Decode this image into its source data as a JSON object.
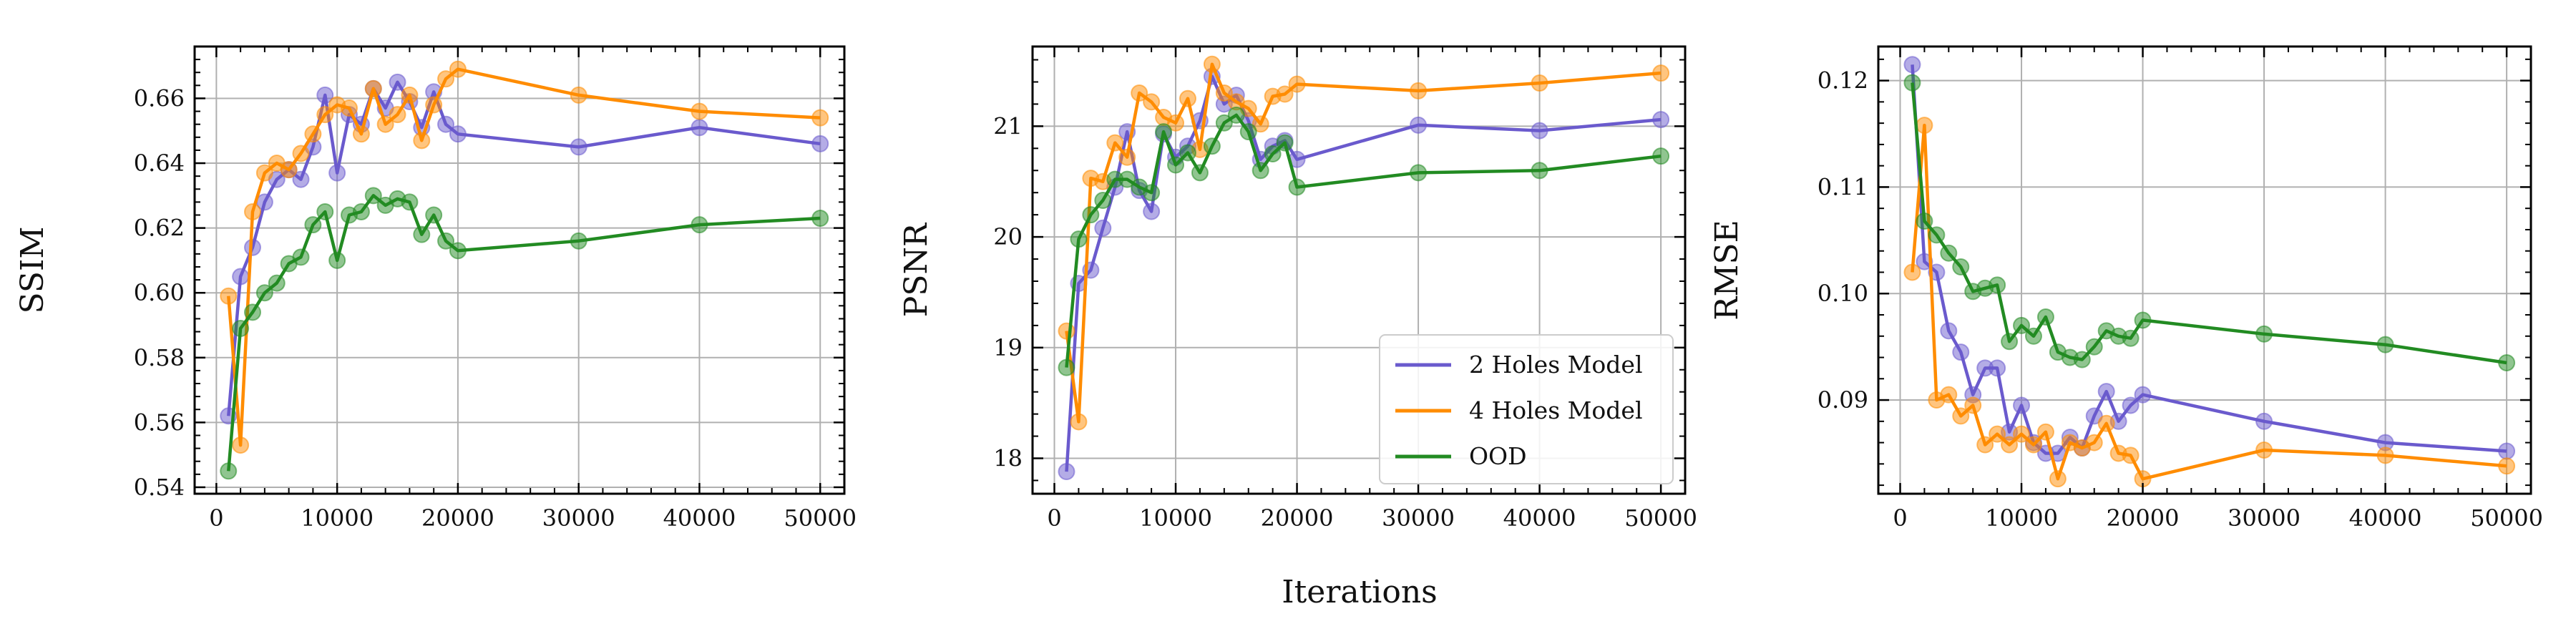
{
  "colors": {
    "two_holes": "#6a5acd",
    "four_holes": "#ff8c00",
    "ood": "#228b22",
    "grid": "#b0b0b0"
  },
  "figure": {
    "xlabel": "Iterations",
    "legend": {
      "placement": "lower-right of middle panel",
      "entries": [
        "2 Holes Model",
        "4 Holes Model",
        "OOD"
      ]
    }
  },
  "chart_data": [
    {
      "type": "line",
      "ylabel": "SSIM",
      "xlim": [
        -1800,
        52000
      ],
      "ylim": [
        0.538,
        0.676
      ],
      "xticks": [
        0,
        10000,
        20000,
        30000,
        40000,
        50000
      ],
      "xtick_labels": [
        "0",
        "10000",
        "20000",
        "30000",
        "40000",
        "50000"
      ],
      "yticks": [
        0.54,
        0.56,
        0.58,
        0.6,
        0.62,
        0.64,
        0.66
      ],
      "ytick_labels": [
        "0.54",
        "0.56",
        "0.58",
        "0.60",
        "0.62",
        "0.64",
        "0.66"
      ],
      "grid": true,
      "series": [
        {
          "name": "2 Holes Model",
          "x": [
            1000,
            2000,
            3000,
            4000,
            5000,
            6000,
            7000,
            8000,
            9000,
            10000,
            11000,
            12000,
            13000,
            14000,
            15000,
            16000,
            17000,
            18000,
            19000,
            20000,
            30000,
            40000,
            50000
          ],
          "y": [
            0.562,
            0.605,
            0.614,
            0.628,
            0.635,
            0.638,
            0.635,
            0.645,
            0.661,
            0.637,
            0.655,
            0.652,
            0.663,
            0.657,
            0.665,
            0.659,
            0.651,
            0.662,
            0.652,
            0.649,
            0.645,
            0.651,
            0.646
          ]
        },
        {
          "name": "4 Holes Model",
          "x": [
            1000,
            2000,
            3000,
            4000,
            5000,
            6000,
            7000,
            8000,
            9000,
            10000,
            11000,
            12000,
            13000,
            14000,
            15000,
            16000,
            17000,
            18000,
            19000,
            20000,
            30000,
            40000,
            50000
          ],
          "y": [
            0.599,
            0.553,
            0.625,
            0.637,
            0.64,
            0.638,
            0.643,
            0.649,
            0.655,
            0.658,
            0.657,
            0.649,
            0.663,
            0.652,
            0.655,
            0.661,
            0.647,
            0.658,
            0.666,
            0.669,
            0.661,
            0.656,
            0.654
          ]
        },
        {
          "name": "OOD",
          "x": [
            1000,
            2000,
            3000,
            4000,
            5000,
            6000,
            7000,
            8000,
            9000,
            10000,
            11000,
            12000,
            13000,
            14000,
            15000,
            16000,
            17000,
            18000,
            19000,
            20000,
            30000,
            40000,
            50000
          ],
          "y": [
            0.545,
            0.589,
            0.594,
            0.6,
            0.603,
            0.609,
            0.611,
            0.621,
            0.625,
            0.61,
            0.624,
            0.625,
            0.63,
            0.627,
            0.629,
            0.628,
            0.618,
            0.624,
            0.616,
            0.613,
            0.616,
            0.621,
            0.623
          ]
        }
      ]
    },
    {
      "type": "line",
      "ylabel": "PSNR",
      "xlim": [
        -1800,
        52000
      ],
      "ylim": [
        17.68,
        21.72
      ],
      "xticks": [
        0,
        10000,
        20000,
        30000,
        40000,
        50000
      ],
      "xtick_labels": [
        "0",
        "10000",
        "20000",
        "30000",
        "40000",
        "50000"
      ],
      "yticks": [
        18,
        19,
        20,
        21
      ],
      "ytick_labels": [
        "18",
        "19",
        "20",
        "21"
      ],
      "grid": true,
      "series": [
        {
          "name": "2 Holes Model",
          "x": [
            1000,
            2000,
            3000,
            4000,
            5000,
            6000,
            7000,
            8000,
            9000,
            10000,
            11000,
            12000,
            13000,
            14000,
            15000,
            16000,
            17000,
            18000,
            19000,
            20000,
            30000,
            40000,
            50000
          ],
          "y": [
            17.88,
            19.58,
            19.7,
            20.08,
            20.45,
            20.95,
            20.42,
            20.23,
            20.93,
            20.72,
            20.82,
            21.05,
            21.45,
            21.2,
            21.28,
            21.05,
            20.7,
            20.82,
            20.87,
            20.7,
            21.01,
            20.96,
            21.06
          ]
        },
        {
          "name": "4 Holes Model",
          "x": [
            1000,
            2000,
            3000,
            4000,
            5000,
            6000,
            7000,
            8000,
            9000,
            10000,
            11000,
            12000,
            13000,
            14000,
            15000,
            16000,
            17000,
            18000,
            19000,
            20000,
            30000,
            40000,
            50000
          ],
          "y": [
            19.15,
            18.33,
            20.53,
            20.5,
            20.85,
            20.72,
            21.3,
            21.22,
            21.08,
            21.03,
            21.25,
            20.79,
            21.56,
            21.3,
            21.22,
            21.16,
            21.02,
            21.27,
            21.29,
            21.38,
            21.32,
            21.39,
            21.48
          ]
        },
        {
          "name": "OOD",
          "x": [
            1000,
            2000,
            3000,
            4000,
            5000,
            6000,
            7000,
            8000,
            9000,
            10000,
            11000,
            12000,
            13000,
            14000,
            15000,
            16000,
            17000,
            18000,
            19000,
            20000,
            30000,
            40000,
            50000
          ],
          "y": [
            18.82,
            19.98,
            20.2,
            20.33,
            20.52,
            20.52,
            20.45,
            20.4,
            20.95,
            20.65,
            20.76,
            20.58,
            20.82,
            21.03,
            21.1,
            20.95,
            20.6,
            20.75,
            20.85,
            20.45,
            20.58,
            20.6,
            20.73
          ]
        }
      ]
    },
    {
      "type": "line",
      "ylabel": "RMSE",
      "xlim": [
        -1800,
        52000
      ],
      "ylim": [
        0.0812,
        0.1232
      ],
      "xticks": [
        0,
        10000,
        20000,
        30000,
        40000,
        50000
      ],
      "xtick_labels": [
        "0",
        "10000",
        "20000",
        "30000",
        "40000",
        "50000"
      ],
      "yticks": [
        0.09,
        0.1,
        0.11,
        0.12
      ],
      "ytick_labels": [
        "0.09",
        "0.10",
        "0.11",
        "0.12"
      ],
      "grid": true,
      "series": [
        {
          "name": "2 Holes Model",
          "x": [
            1000,
            2000,
            3000,
            4000,
            5000,
            6000,
            7000,
            8000,
            9000,
            10000,
            11000,
            12000,
            13000,
            14000,
            15000,
            16000,
            17000,
            18000,
            19000,
            20000,
            30000,
            40000,
            50000
          ],
          "y": [
            0.1215,
            0.103,
            0.102,
            0.0965,
            0.0945,
            0.0905,
            0.093,
            0.093,
            0.087,
            0.0895,
            0.086,
            0.085,
            0.085,
            0.0865,
            0.0855,
            0.0885,
            0.0908,
            0.088,
            0.0895,
            0.0905,
            0.088,
            0.086,
            0.0852
          ]
        },
        {
          "name": "4 Holes Model",
          "x": [
            1000,
            2000,
            3000,
            4000,
            5000,
            6000,
            7000,
            8000,
            9000,
            10000,
            11000,
            12000,
            13000,
            14000,
            15000,
            16000,
            17000,
            18000,
            19000,
            20000,
            30000,
            40000,
            50000
          ],
          "y": [
            0.102,
            0.1158,
            0.09,
            0.0905,
            0.0885,
            0.0895,
            0.0858,
            0.0868,
            0.0858,
            0.0868,
            0.0858,
            0.087,
            0.0826,
            0.086,
            0.0855,
            0.086,
            0.0878,
            0.085,
            0.0848,
            0.0826,
            0.0853,
            0.0848,
            0.0838
          ]
        },
        {
          "name": "OOD",
          "x": [
            1000,
            2000,
            3000,
            4000,
            5000,
            6000,
            7000,
            8000,
            9000,
            10000,
            11000,
            12000,
            13000,
            14000,
            15000,
            16000,
            17000,
            18000,
            19000,
            20000,
            30000,
            40000,
            50000
          ],
          "y": [
            0.1198,
            0.1068,
            0.1055,
            0.1038,
            0.1025,
            0.1002,
            0.1005,
            0.1008,
            0.0955,
            0.097,
            0.096,
            0.0978,
            0.0945,
            0.094,
            0.0938,
            0.095,
            0.0965,
            0.096,
            0.0958,
            0.0975,
            0.0962,
            0.0952,
            0.0935
          ]
        }
      ]
    }
  ]
}
